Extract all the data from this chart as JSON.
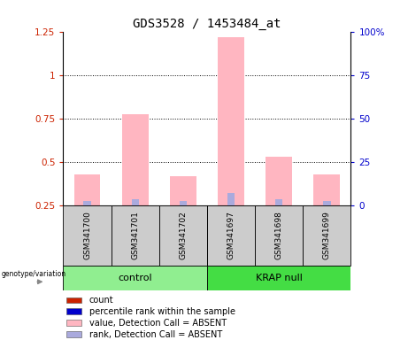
{
  "title": "GDS3528 / 1453484_at",
  "samples": [
    "GSM341700",
    "GSM341701",
    "GSM341702",
    "GSM341697",
    "GSM341698",
    "GSM341699"
  ],
  "pink_bar_tops": [
    0.43,
    0.78,
    0.42,
    1.22,
    0.53,
    0.43
  ],
  "blue_bar_tops": [
    0.275,
    0.285,
    0.275,
    0.325,
    0.285,
    0.275
  ],
  "bar_bottom": 0.25,
  "ylim_left": [
    0.25,
    1.25
  ],
  "ylim_right": [
    0,
    100
  ],
  "yticks_left": [
    0.25,
    0.5,
    0.75,
    1.0,
    1.25
  ],
  "ytick_labels_left": [
    "0.25",
    "0.5",
    "0.75",
    "1",
    "1.25"
  ],
  "yticks_right": [
    0,
    25,
    50,
    75,
    100
  ],
  "ytick_labels_right": [
    "0",
    "25",
    "50",
    "75",
    "100%"
  ],
  "hlines": [
    0.5,
    0.75,
    1.0
  ],
  "bar_width": 0.55,
  "pink_color": "#FFB6C1",
  "blue_color": "#AAAADD",
  "red_color": "#CC2200",
  "dark_blue_color": "#0000CC",
  "background_color": "#FFFFFF",
  "gray_box_color": "#CCCCCC",
  "green_control_color": "#90EE90",
  "green_krap_color": "#44DD44",
  "legend_items": [
    {
      "label": "count",
      "color": "#CC2200"
    },
    {
      "label": "percentile rank within the sample",
      "color": "#0000CC"
    },
    {
      "label": "value, Detection Call = ABSENT",
      "color": "#FFB6C1"
    },
    {
      "label": "rank, Detection Call = ABSENT",
      "color": "#AAAADD"
    }
  ],
  "title_fontsize": 10,
  "tick_fontsize": 7.5,
  "label_fontsize": 7.5,
  "sample_fontsize": 6.5,
  "legend_fontsize": 7,
  "group_fontsize": 8
}
